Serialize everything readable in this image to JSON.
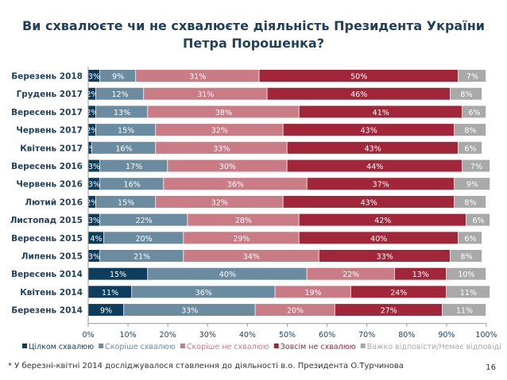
{
  "chart_data": {
    "type": "bar",
    "orientation": "horizontal",
    "stacked": true,
    "title": "Ви схвалюєте чи не схвалюєте діяльність Президента України Петра Порошенка?",
    "categories": [
      "Березень 2018",
      "Грудень 2017",
      "Вересень 2017",
      "Червень 2017",
      "Квітень 2017",
      "Вересень 2016",
      "Червень 2016",
      "Лютий 2016",
      "Листопад 2015",
      "Вересень 2015",
      "Липень 2015",
      "Вересень 2014",
      "Квітень 2014",
      "Березень 2014"
    ],
    "series": [
      {
        "name": "Цілком схвалюю",
        "color": "#0e3c5c",
        "values": [
          3,
          2,
          2,
          2,
          1,
          3,
          3,
          2,
          3,
          4,
          3,
          15,
          11,
          9
        ]
      },
      {
        "name": "Скоріше схвалюю",
        "color": "#6a8ba0",
        "values": [
          9,
          12,
          13,
          15,
          16,
          17,
          16,
          15,
          22,
          20,
          21,
          40,
          36,
          33
        ]
      },
      {
        "name": "Скоріше не схвалюю",
        "color": "#c97b86",
        "values": [
          31,
          31,
          38,
          32,
          33,
          30,
          36,
          32,
          28,
          29,
          34,
          22,
          19,
          20
        ]
      },
      {
        "name": "Зовсім не схвалюю",
        "color": "#a2263a",
        "values": [
          50,
          46,
          41,
          43,
          43,
          44,
          37,
          43,
          42,
          40,
          33,
          13,
          24,
          27
        ]
      },
      {
        "name": "Важко відповісти/Немає відповіді",
        "color": "#a9a9a9",
        "values": [
          7,
          8,
          6,
          8,
          6,
          7,
          9,
          8,
          6,
          6,
          8,
          10,
          11,
          11
        ]
      }
    ],
    "xlim": [
      0,
      100
    ],
    "xticks": [
      "0%",
      "10%",
      "20%",
      "30%",
      "40%",
      "50%",
      "60%",
      "70%",
      "80%",
      "90%",
      "100%"
    ],
    "legend_position": "bottom",
    "grid": false
  },
  "footnote": "* У березні-квітні 2014 досліджувалося ставлення до діяльності в.о. Президента О.Турчинова",
  "page_number": "16"
}
